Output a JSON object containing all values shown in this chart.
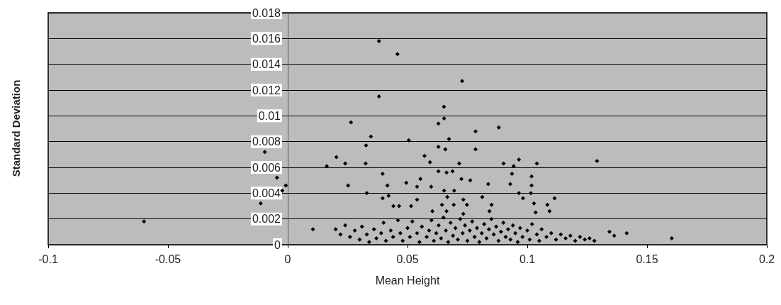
{
  "chart_data": {
    "type": "scatter",
    "xlabel": "Mean Height",
    "ylabel": "Standard Deviation",
    "xlim": [
      -0.1,
      0.2
    ],
    "xticks": [
      -0.1,
      -0.05,
      0,
      0.05,
      0.1,
      0.15,
      0.2
    ],
    "ylim": [
      0,
      0.018
    ],
    "yticks": [
      0,
      0.002,
      0.004,
      0.006,
      0.008,
      0.01,
      0.012,
      0.014,
      0.016,
      0.018
    ],
    "grid": "y",
    "marker": "diamond",
    "series": [
      {
        "color": "#000000",
        "x": [
          -0.06,
          -0.0096,
          -0.0045,
          -0.0008,
          -0.0023,
          -0.0113,
          0.0105,
          0.0381,
          0.0458,
          0.0728,
          0.0381,
          0.0652,
          0.0653,
          0.0629,
          0.0264,
          0.0881,
          0.0784,
          0.0347,
          0.0505,
          0.0673,
          0.0327,
          0.0629,
          0.0658,
          0.0784,
          0.0571,
          0.0203,
          0.0163,
          0.024,
          0.0325,
          0.0594,
          0.0716,
          0.0965,
          0.0901,
          0.0943,
          0.104,
          0.0629,
          0.0663,
          0.0688,
          0.0396,
          0.0936,
          0.0554,
          0.0725,
          0.0762,
          0.1018,
          0.0252,
          0.0416,
          0.0495,
          0.054,
          0.0599,
          0.0837,
          0.0929,
          0.1018,
          0.033,
          0.0653,
          0.0695,
          0.0965,
          0.1015,
          0.0396,
          0.0421,
          0.054,
          0.0666,
          0.0733,
          0.0812,
          0.0982,
          0.1114,
          0.0441,
          0.0465,
          0.0515,
          0.0644,
          0.0693,
          0.0748,
          0.0851,
          0.1028,
          0.1084,
          0.0604,
          0.0663,
          0.0733,
          0.0842,
          0.1035,
          0.1093,
          0.1291,
          0.1343,
          0.1363,
          0.1415,
          0.1603,
          0.02,
          0.022,
          0.024,
          0.026,
          0.028,
          0.03,
          0.031,
          0.033,
          0.034,
          0.036,
          0.037,
          0.039,
          0.04,
          0.041,
          0.043,
          0.044,
          0.046,
          0.047,
          0.048,
          0.05,
          0.051,
          0.052,
          0.054,
          0.055,
          0.056,
          0.058,
          0.059,
          0.06,
          0.061,
          0.062,
          0.063,
          0.064,
          0.065,
          0.066,
          0.067,
          0.068,
          0.069,
          0.07,
          0.071,
          0.072,
          0.073,
          0.074,
          0.075,
          0.076,
          0.077,
          0.078,
          0.079,
          0.08,
          0.081,
          0.082,
          0.083,
          0.084,
          0.085,
          0.086,
          0.087,
          0.088,
          0.089,
          0.09,
          0.091,
          0.092,
          0.093,
          0.094,
          0.095,
          0.096,
          0.097,
          0.098,
          0.1,
          0.101,
          0.102,
          0.104,
          0.105,
          0.106,
          0.108,
          0.11,
          0.112,
          0.114,
          0.116,
          0.118,
          0.12,
          0.122,
          0.124,
          0.126,
          0.128
        ],
        "values": [
          0.0018,
          0.0072,
          0.0052,
          0.0046,
          0.0042,
          0.0032,
          0.0012,
          0.0158,
          0.0148,
          0.0127,
          0.0115,
          0.0107,
          0.0098,
          0.0094,
          0.0095,
          0.0091,
          0.0088,
          0.0084,
          0.0081,
          0.0082,
          0.0077,
          0.0076,
          0.0074,
          0.0074,
          0.0069,
          0.0068,
          0.0061,
          0.0063,
          0.0063,
          0.0064,
          0.0063,
          0.0066,
          0.0063,
          0.0061,
          0.0063,
          0.0057,
          0.0056,
          0.0057,
          0.0055,
          0.0055,
          0.0051,
          0.0051,
          0.005,
          0.0053,
          0.0046,
          0.0046,
          0.0048,
          0.0045,
          0.0045,
          0.0047,
          0.0047,
          0.0046,
          0.004,
          0.0042,
          0.0042,
          0.004,
          0.004,
          0.0036,
          0.0038,
          0.0035,
          0.0037,
          0.0035,
          0.0037,
          0.0036,
          0.0036,
          0.003,
          0.003,
          0.003,
          0.0031,
          0.0031,
          0.0031,
          0.0031,
          0.0032,
          0.0031,
          0.0026,
          0.0026,
          0.0024,
          0.0026,
          0.0025,
          0.0026,
          0.0065,
          0.001,
          0.0007,
          0.0009,
          0.0005,
          0.0012,
          0.0008,
          0.0015,
          0.0006,
          0.0011,
          0.0004,
          0.0014,
          0.0008,
          0.0002,
          0.0012,
          0.0005,
          0.0009,
          0.0017,
          0.0003,
          0.0011,
          0.0006,
          0.0019,
          0.0009,
          0.0003,
          0.0013,
          0.0006,
          0.0018,
          0.0009,
          0.0002,
          0.0014,
          0.0006,
          0.0011,
          0.0019,
          0.0003,
          0.0009,
          0.0015,
          0.0005,
          0.0021,
          0.0011,
          0.0002,
          0.0017,
          0.0007,
          0.0013,
          0.0004,
          0.002,
          0.0009,
          0.0015,
          0.0003,
          0.0011,
          0.0018,
          0.0006,
          0.0013,
          0.0002,
          0.0009,
          0.0016,
          0.0005,
          0.0012,
          0.002,
          0.0008,
          0.0014,
          0.0003,
          0.001,
          0.0017,
          0.0006,
          0.0012,
          0.0004,
          0.0015,
          0.0009,
          0.0002,
          0.0013,
          0.0006,
          0.0011,
          0.0004,
          0.0016,
          0.0008,
          0.0003,
          0.0012,
          0.0006,
          0.0009,
          0.0004,
          0.0008,
          0.0005,
          0.0007,
          0.0003,
          0.0006,
          0.0004,
          0.0005,
          0.0003
        ]
      }
    ]
  }
}
